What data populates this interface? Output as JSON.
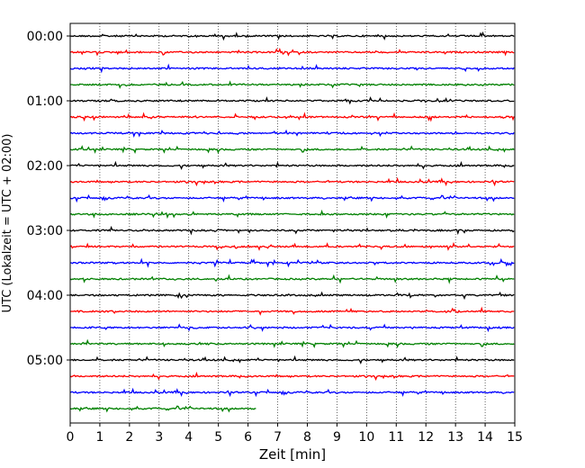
{
  "chart_data": {
    "type": "line",
    "title": "",
    "xlabel": "Zeit  [min]",
    "ylabel": "UTC (Lokalzeit = UTC + 02:00)",
    "xlim": [
      0,
      15
    ],
    "x_ticks": [
      "0",
      "1",
      "2",
      "3",
      "4",
      "5",
      "6",
      "7",
      "8",
      "9",
      "10",
      "11",
      "12",
      "13",
      "14",
      "15"
    ],
    "y_ticks": [
      "00:00",
      "01:00",
      "02:00",
      "03:00",
      "04:00",
      "05:00"
    ],
    "grid": "vertical-dotted",
    "trace_interval_minutes": 15,
    "trace_colors": [
      "#000000",
      "#ff0000",
      "#0000ff",
      "#008000"
    ],
    "trace_count": 24,
    "last_trace_end_min": 6.3,
    "traces": [
      {
        "start": "00:00",
        "color": "#000000"
      },
      {
        "start": "00:15",
        "color": "#ff0000"
      },
      {
        "start": "00:30",
        "color": "#0000ff"
      },
      {
        "start": "00:45",
        "color": "#008000"
      },
      {
        "start": "01:00",
        "color": "#000000"
      },
      {
        "start": "01:15",
        "color": "#ff0000"
      },
      {
        "start": "01:30",
        "color": "#0000ff"
      },
      {
        "start": "01:45",
        "color": "#008000"
      },
      {
        "start": "02:00",
        "color": "#000000"
      },
      {
        "start": "02:15",
        "color": "#ff0000"
      },
      {
        "start": "02:30",
        "color": "#0000ff"
      },
      {
        "start": "02:45",
        "color": "#008000"
      },
      {
        "start": "03:00",
        "color": "#000000"
      },
      {
        "start": "03:15",
        "color": "#ff0000"
      },
      {
        "start": "03:30",
        "color": "#0000ff"
      },
      {
        "start": "03:45",
        "color": "#008000"
      },
      {
        "start": "04:00",
        "color": "#000000"
      },
      {
        "start": "04:15",
        "color": "#ff0000"
      },
      {
        "start": "04:30",
        "color": "#0000ff"
      },
      {
        "start": "04:45",
        "color": "#008000"
      },
      {
        "start": "05:00",
        "color": "#000000"
      },
      {
        "start": "05:15",
        "color": "#ff0000"
      },
      {
        "start": "05:30",
        "color": "#0000ff"
      },
      {
        "start": "05:45",
        "color": "#008000"
      }
    ]
  }
}
